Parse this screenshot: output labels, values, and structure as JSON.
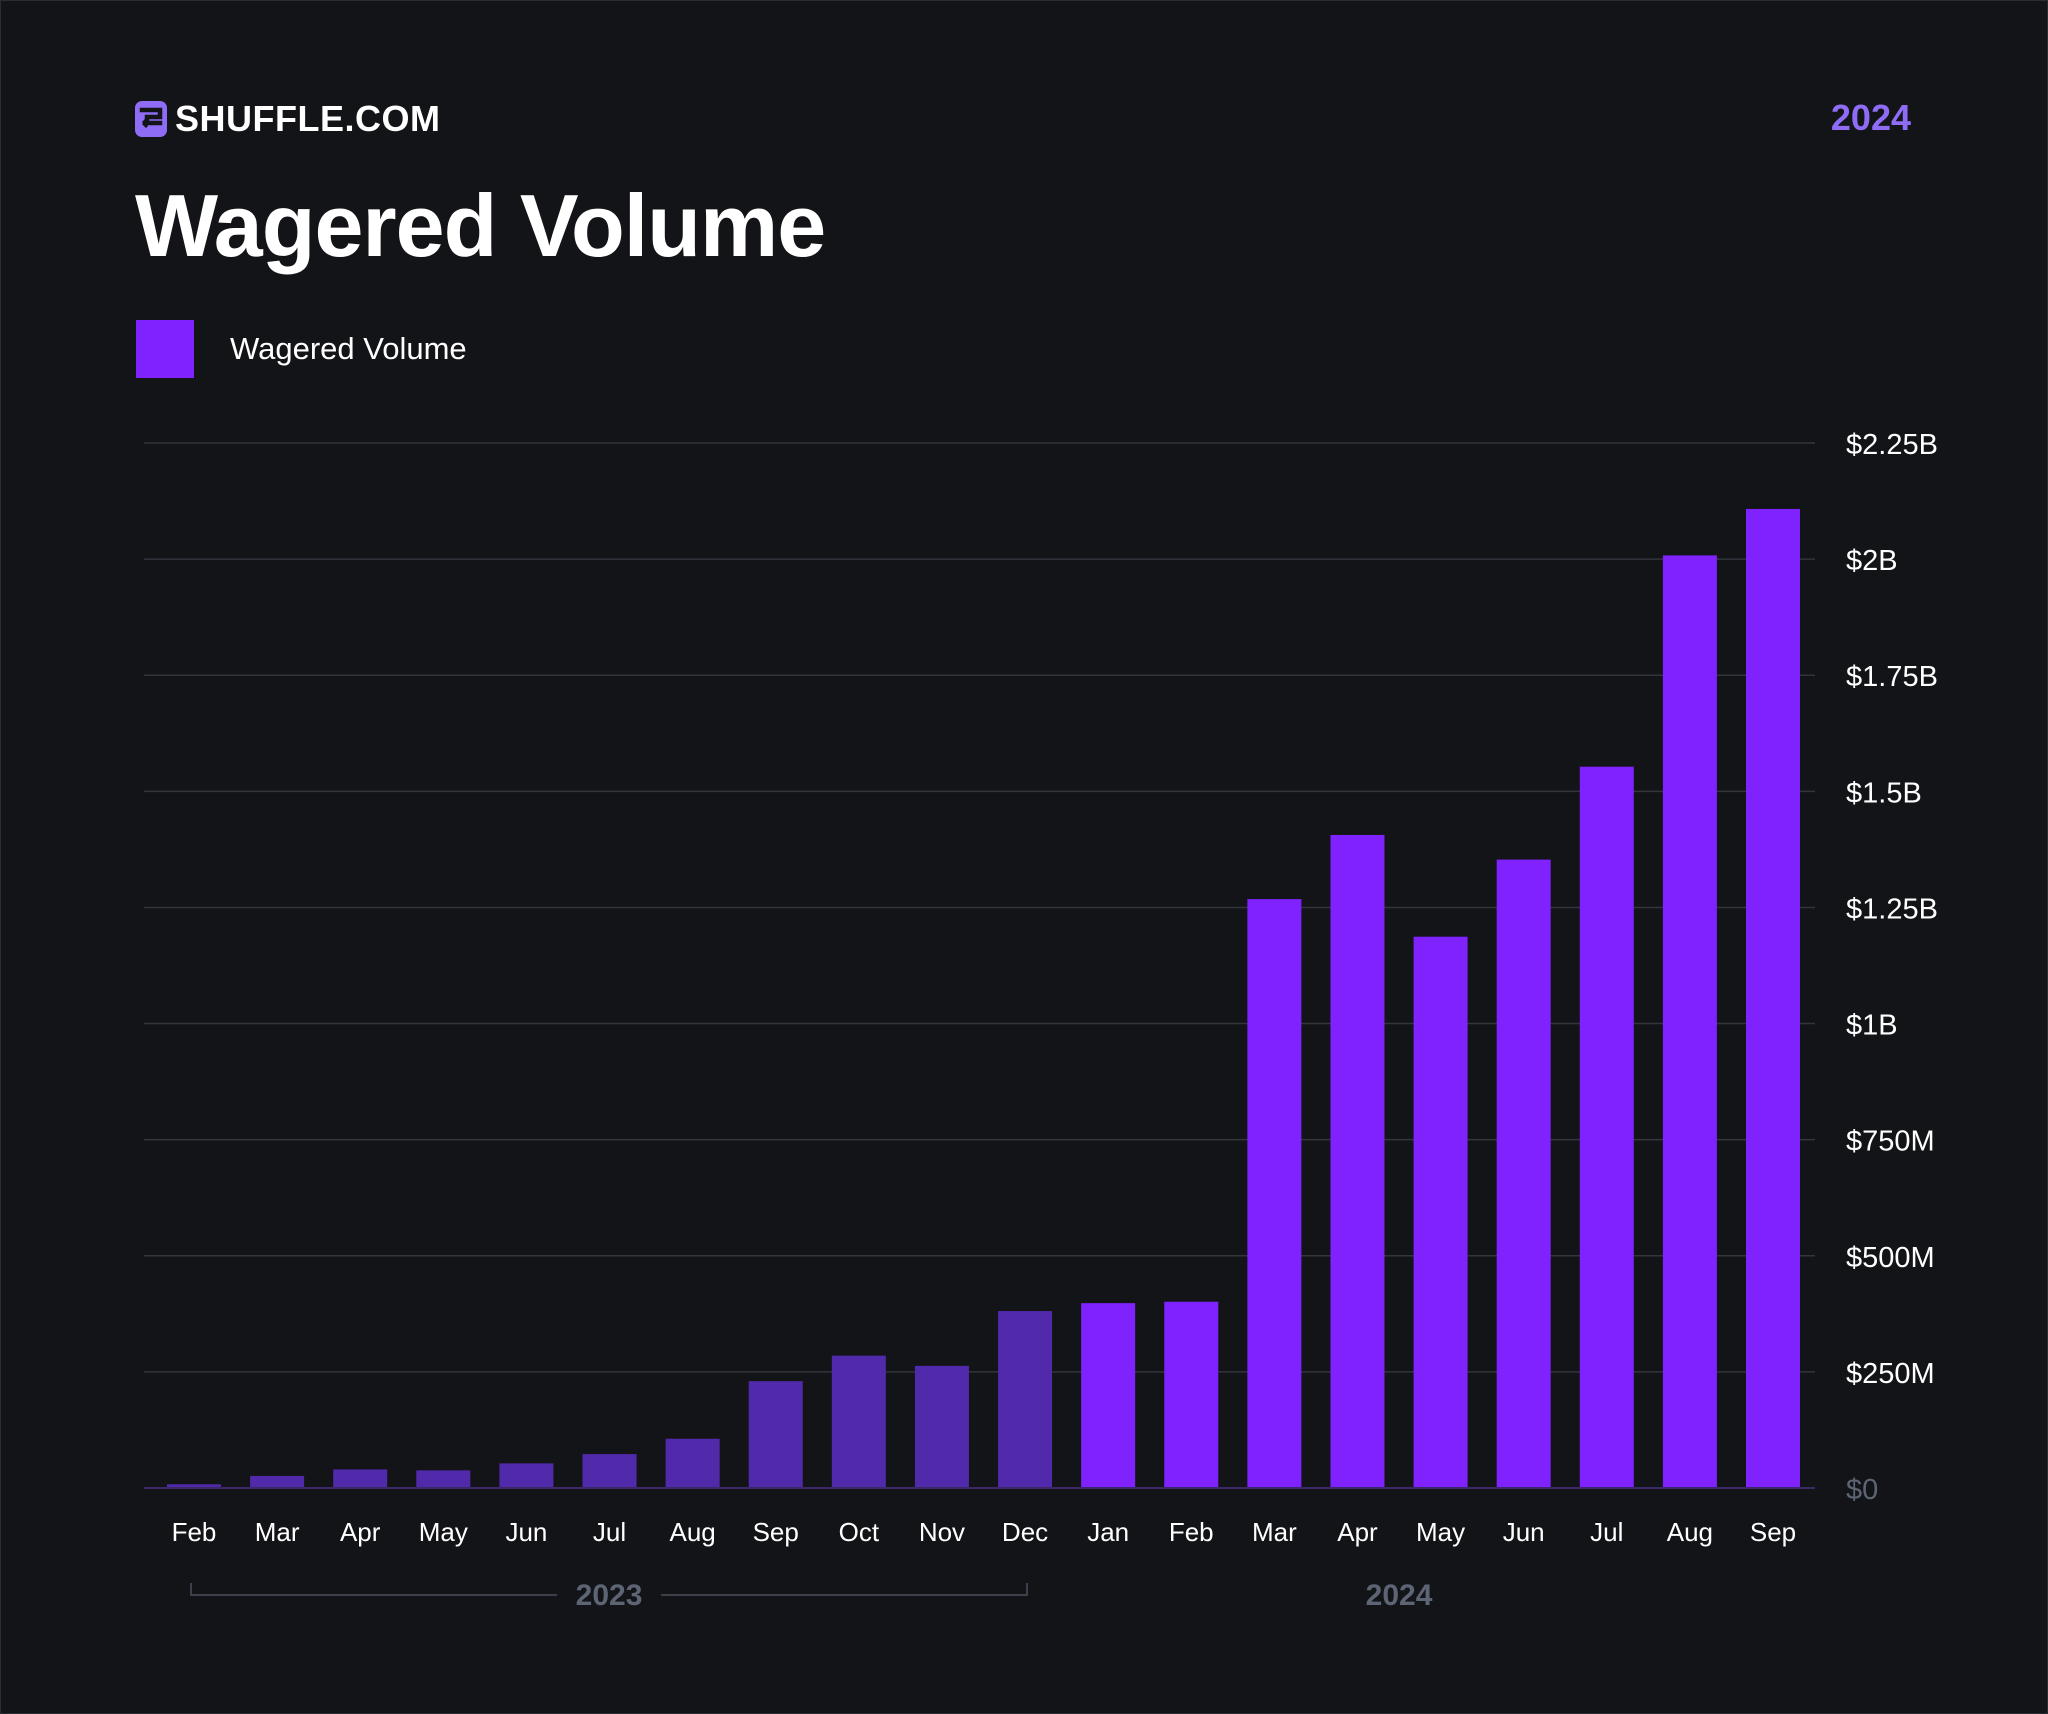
{
  "brand": {
    "name": "SHUFFLE.COM",
    "icon": "shuffle-logo-icon"
  },
  "header": {
    "year": "2024"
  },
  "title": "Wagered Volume",
  "colors": {
    "background": "#131418",
    "bar_2024": "#7f22fe",
    "bar_2023": "#512aab",
    "gridline": "#33353d",
    "axis": "#3b2866",
    "zero_label": "#5d6473",
    "year_label": "#5d6473",
    "accent": "#8e6cf5"
  },
  "chart_data": {
    "type": "bar",
    "legend": [
      {
        "name": "Wagered Volume",
        "color": "#7f22fe"
      }
    ],
    "categories": [
      "Feb",
      "Mar",
      "Apr",
      "May",
      "Jun",
      "Jul",
      "Aug",
      "Sep",
      "Oct",
      "Nov",
      "Dec",
      "Jan",
      "Feb",
      "Mar",
      "Apr",
      "May",
      "Jun",
      "Jul",
      "Aug",
      "Sep"
    ],
    "category_years": [
      "2023",
      "2023",
      "2023",
      "2023",
      "2023",
      "2023",
      "2023",
      "2023",
      "2023",
      "2023",
      "2023",
      "2024",
      "2024",
      "2024",
      "2024",
      "2024",
      "2024",
      "2024",
      "2024",
      "2024"
    ],
    "series": [
      {
        "name": "Wagered Volume",
        "values": [
          8000000,
          26000000,
          40000000,
          38000000,
          53000000,
          73000000,
          106000000,
          230000000,
          285000000,
          263000000,
          381000000,
          398000000,
          401000000,
          1268000000,
          1406000000,
          1187000000,
          1353000000,
          1553000000,
          2008000000,
          2108000000
        ]
      }
    ],
    "ylim": [
      0,
      2250000000
    ],
    "yticks": [
      0,
      250000000,
      500000000,
      750000000,
      1000000000,
      1250000000,
      1500000000,
      1750000000,
      2000000000,
      2250000000
    ],
    "ytick_labels": [
      "$0",
      "$250M",
      "$500M",
      "$750M",
      "$1B",
      "$1.25B",
      "$1.5B",
      "$1.75B",
      "$2B",
      "$2.25B"
    ],
    "y_axis_side": "right",
    "grid": true,
    "year_groups": [
      {
        "label": "2023",
        "bracket": true
      },
      {
        "label": "2024",
        "bracket": false
      }
    ]
  }
}
